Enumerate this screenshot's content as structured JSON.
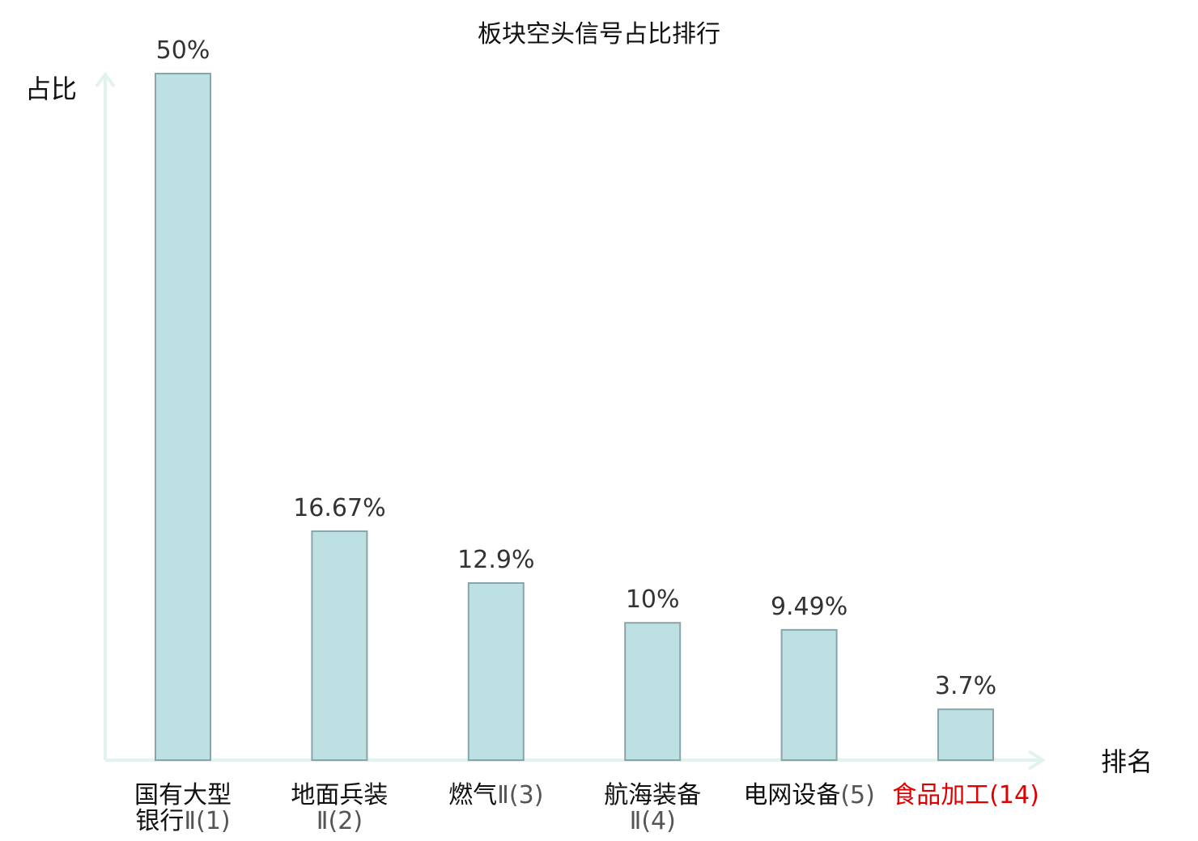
{
  "chart_data": {
    "type": "bar",
    "title": "板块空头信号占比排行",
    "ylabel": "占比",
    "xlabel": "排名",
    "ylim": [
      0,
      50
    ],
    "value_suffix": "%",
    "grid": false,
    "categories": [
      {
        "name_lines": [
          "国有大型",
          "银行"
        ],
        "rank_line": 1,
        "rank": "Ⅱ(1)",
        "highlight": false
      },
      {
        "name_lines": [
          "地面兵装"
        ],
        "rank_line": 1,
        "rank": "Ⅱ(2)",
        "highlight": false
      },
      {
        "name_lines": [
          "燃气"
        ],
        "rank_line": 0,
        "rank": "Ⅱ(3)",
        "highlight": false
      },
      {
        "name_lines": [
          "航海装备"
        ],
        "rank_line": 1,
        "rank": "Ⅱ(4)",
        "highlight": false
      },
      {
        "name_lines": [
          "电网设备"
        ],
        "rank_line": 0,
        "rank": "(5)",
        "highlight": false
      },
      {
        "name_lines": [
          "食品加工"
        ],
        "rank_line": 0,
        "rank": "(14)",
        "highlight": true
      }
    ],
    "values": [
      50,
      16.67,
      12.9,
      10,
      9.49,
      3.7
    ],
    "value_labels": [
      "50%",
      "16.67%",
      "12.9%",
      "10%",
      "9.49%",
      "3.7%"
    ],
    "colors": {
      "bar_fill": "#bde0e3",
      "bar_stroke": "#8aa5a9",
      "axis": "#e2f2ef",
      "category_name": "#111111",
      "category_rank": "#555555",
      "highlight": "#e00000"
    }
  }
}
